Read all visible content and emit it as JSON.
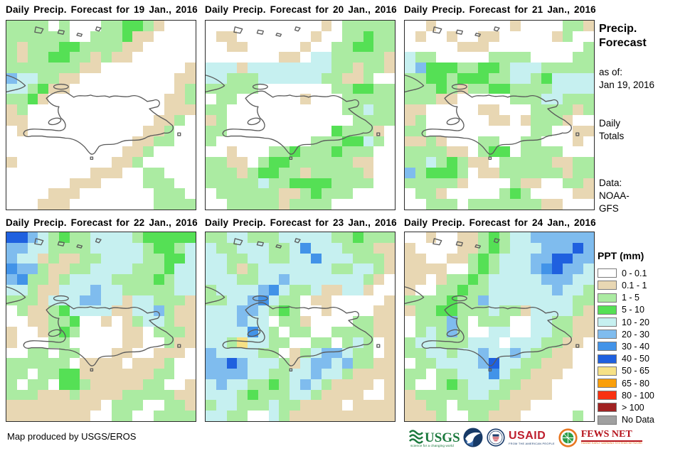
{
  "panels": [
    {
      "title": "Daily Precip. Forecast for 19 Jan., 2016",
      "grid": [
        "ggggWgWWWggGGgTWWW",
        "ggggggWWgggGTTWWWW",
        "gTgggGGggggTTWWWWW",
        "gTggGGggTgTTWWWWWW",
        "gggggggTTWWWWWWWWT",
        "bccggTTWWWWWWWWWTT",
        "ccgGTTWWWWWWWWWWTg",
        "ggGTWWWWWWWWWWWTTg",
        "TgWWWWWWWWWWWWWTTT",
        "TTWWWWWWWWWWWWTTgW",
        "WTWWWWWWWWWWWTTgWW",
        "WWWWWWWWWWWWTTggWW",
        "WWWWWWWWWWWTTgWWWW",
        "TWWWWWWWWWTTgWWWWW",
        "WWWWWWWWTTTWWggWWW",
        "WWWWWWTTTWWWWgggWW",
        "WWWWTTTWWWWWWWgggW",
        "WWWTTTWWWWWWWWgggg"
      ]
    },
    {
      "title": "Daily Precip. Forecast for 20 Jan., 2016",
      "grid": [
        "WWWWWWWWWWWTWggggg",
        "WTTWWWWWWWTWWggGgg",
        "WWTTWWWWWTWWggGGgg",
        "WWWWWWWTTWccgggggT",
        "cccTccccccccggTggT",
        "ccgggccccccggTTgWW",
        "gggggWWWWWWWggGGgg",
        "WggWWWWWWTWWWggggg",
        "ggWWWWWWWWWWWggcgg",
        "TgWWWWWWWWWWWWgggg",
        "ggWWWWWWWWWWGgggTW",
        "gWWWWWWWWWgggGGcgW",
        "WWTWWWggGgggGgggWW",
        "ggTTWgGGggggggTTWW",
        "gggTgGGggTgggggTWW",
        "gggggcggGGGGggggWW",
        "WggggggTTgGgggWWWW",
        "WWgggggTggggWWWWWW"
      ]
    },
    {
      "title": "Daily Precip. Forecast for 21 Jan., 2016",
      "grid": [
        "WWTWWWWWWWTWWWWggT",
        "WTWWTWWTTWWWWWTgWW",
        "WWWWWTTTWWWWWWWWWg",
        "cggWWWWWggggWWWWgg",
        "cbGGGggGGgcccggggg",
        "ggGGgGGGggccgGcccc",
        "gggGgTggGGggggcccc",
        "gggTTWWWWWgggccggg",
        "TTWWWWWTTWWWggggTg",
        "TgWWWWWWTTWTgggTWW",
        "ggWWWWWWWWWWggWWTT",
        "TTgTWWWggWWggWWWTW",
        "ggggTTWgGGWggggWWW",
        "ggcgGgTTWgggggTTgg",
        "bgGGGgWTTggggggTgg",
        "gggggTWWWWgTTWWggT",
        "WggTWWWWWgGgWWWWTT",
        "WWgggWgggggggTTWWW"
      ]
    },
    {
      "title": "Daily Precip. Forecast for 22 Jan., 2016",
      "grid": [
        "DDbcgGggccccgGGGGG",
        "bbccggggcccccgGGgc",
        "bccTgTTggccccggGGc",
        "BbbgTTggccccgggGcc",
        "bBggTgccccggggGgcc",
        "ccgTTcccbccgggggcc",
        "gggTcccbbccTccgggT",
        "WgTTgGccccTTccbgTT",
        "WWTTggGWWTWTgccgTT",
        "TWWTgGgWWWWTTWgggT",
        "TWWWggWWWWWTTWWgTT",
        "WWggWggWWWTTWWTTTW",
        "ggggggWTTTTWTTTgWW",
        "ggWggGGTTTTTTTggWW",
        "gWggWGGgTTTTTggWWT",
        "gggTTTgTTTTgggggTT",
        "TTTTTTTTTWgggWWggT",
        "TTTTTTTTWWggWWgggg"
      ]
    },
    {
      "title": "Daily Precip. Forecast for 23 Jan., 2016",
      "grid": [
        "ggccgggcccccggGggg",
        "cggcccggcBcccgggTT",
        "ccggccggccBcccgggT",
        "ccgTgcccccccggccgT",
        "cccggccbcccccccgTW",
        "gccccbBcggcTTccTWW",
        "ggccbBcggWTTWWWWWT",
        "cccbbcgGgWWTWWWWTT",
        "cccbccWggTWWWWggTT",
        "ccccBcgWggWWggggTT",
        "ccgYccggWWggWgcgWT",
        "bccccggWTgcbbcggWT",
        "bbDbcccgTcbbcbggTT",
        "bbbbccggccbccgTTTT",
        "cbccggGgcbcgTTTTWT",
        "cccgGgggccgTTTTWWT",
        "gccgggcggTTTTWTTTT",
        "ccggWWcgTTTTTTTTTT"
      ]
    },
    {
      "title": "Daily Precip. Forecast for 24 Jan., 2016",
      "grid": [
        "WWTWWTTgGgccbbbbbb",
        "TWWWWTTgGgcccbbbDb",
        "TTWWTTgGgcccbbDDbb",
        "TTTTWWgGgcccbBDbbc",
        "TTWTggGgcccccbbbcc",
        "TWWggGggccccccbccg",
        "ggggGggbccccccccgg",
        "TggGGgggcggTccccgT",
        "WgggbgWgggWWccggTT",
        "WgcgbgWWccWWccggTT",
        "gccgggcccWcccggTTW",
        "ggccgccbccbcggTTWW",
        "WggccccbDccggTTTWW",
        "ggWggcccBcggTTTWWW",
        "gWWgGgcccggTTTWWWW",
        "TgggggccggTTTTWWWW",
        "TTggWggggTTTWWWWWW",
        "TTTgWWggTTTWWWWWgW"
      ]
    }
  ],
  "palette": {
    "W": "#FFFFFF",
    "T": "#E8D7B3",
    "g": "#ABEBA2",
    "G": "#55E055",
    "c": "#C6F0F0",
    "b": "#7FBCEE",
    "B": "#4293E8",
    "D": "#1F60DF",
    "Y": "#F6E186",
    "O": "#FA9F0A",
    "R": "#F93111",
    "M": "#A02222",
    "N": "#A0A0A0"
  },
  "sidebar": {
    "title_line1": "Precip.",
    "title_line2": "Forecast",
    "as_of_label": "as of:",
    "as_of_date": "Jan 19, 2016",
    "totals_line1": "Daily",
    "totals_line2": "Totals",
    "data_label": "Data:",
    "data_line1": "NOAA-",
    "data_line2": "GFS"
  },
  "legend": {
    "title": "PPT (mm)",
    "items": [
      {
        "label": "0 - 0.1",
        "code": "W"
      },
      {
        "label": "0.1 - 1",
        "code": "T"
      },
      {
        "label": "1 - 5",
        "code": "g"
      },
      {
        "label": "5 - 10",
        "code": "G"
      },
      {
        "label": "10 - 20",
        "code": "c"
      },
      {
        "label": "20 - 30",
        "code": "b"
      },
      {
        "label": "30 - 40",
        "code": "B"
      },
      {
        "label": "40 - 50",
        "code": "D"
      },
      {
        "label": "50 - 65",
        "code": "Y"
      },
      {
        "label": "65 - 80",
        "code": "O"
      },
      {
        "label": "80 - 100",
        "code": "R"
      },
      {
        "label": "> 100",
        "code": "M"
      },
      {
        "label": "No Data",
        "code": "N"
      }
    ]
  },
  "footer": {
    "credit": "Map produced by USGS/EROS",
    "logos": [
      {
        "name": "usgs",
        "text": "USGS",
        "tagline": "science for a changing world"
      },
      {
        "name": "noaa"
      },
      {
        "name": "usaid",
        "text": "USAID",
        "tagline": "FROM THE AMERICAN PEOPLE"
      },
      {
        "name": "fews-net",
        "text": "FEWS NET",
        "tagline": "FAMINE EARLY WARNING SYSTEMS NETWORK"
      }
    ]
  }
}
